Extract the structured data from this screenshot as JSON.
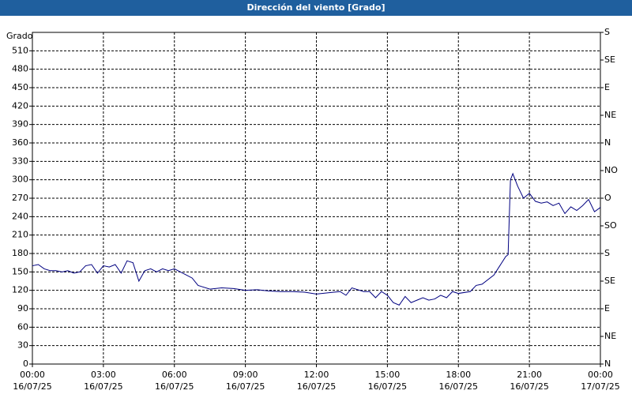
{
  "chart_data": {
    "type": "line",
    "title": "Dirección del viento [Grado]",
    "y_label": "Grado",
    "x": [
      0,
      0.25,
      0.5,
      0.75,
      1,
      1.25,
      1.5,
      1.75,
      2,
      2.25,
      2.5,
      2.75,
      3,
      3.25,
      3.5,
      3.75,
      4,
      4.25,
      4.5,
      4.75,
      5,
      5.25,
      5.5,
      5.75,
      6,
      6.25,
      6.5,
      6.75,
      7,
      7.5,
      8,
      8.5,
      9,
      9.5,
      10,
      10.5,
      11,
      11.5,
      12,
      12.5,
      13,
      13.25,
      13.5,
      14,
      14.25,
      14.5,
      14.75,
      15,
      15.25,
      15.5,
      15.75,
      16,
      16.25,
      16.5,
      16.75,
      17,
      17.25,
      17.5,
      17.75,
      18,
      18.5,
      18.75,
      19,
      19.5,
      19.75,
      20,
      20.1,
      20.2,
      20.3,
      20.5,
      20.75,
      21,
      21.25,
      21.5,
      21.75,
      22,
      22.25,
      22.5,
      22.75,
      23,
      23.25,
      23.5,
      23.75,
      24
    ],
    "series": [
      {
        "name": "Dirección del viento",
        "color": "#000080",
        "values": [
          160,
          162,
          155,
          152,
          152,
          150,
          152,
          148,
          150,
          160,
          162,
          148,
          160,
          158,
          162,
          148,
          168,
          165,
          135,
          152,
          155,
          150,
          155,
          152,
          155,
          150,
          145,
          140,
          128,
          122,
          124,
          123,
          120,
          121,
          119,
          118,
          118,
          117,
          114,
          116,
          118,
          112,
          124,
          118,
          118,
          108,
          118,
          112,
          100,
          96,
          110,
          100,
          104,
          108,
          104,
          106,
          112,
          108,
          118,
          115,
          118,
          128,
          130,
          145,
          160,
          175,
          178,
          300,
          310,
          290,
          270,
          278,
          265,
          262,
          264,
          258,
          262,
          245,
          256,
          250,
          258,
          268,
          248,
          255
        ]
      }
    ],
    "xlim": [
      0,
      24
    ],
    "xticks": [
      {
        "value": 0,
        "label": "00:00 16/07/25"
      },
      {
        "value": 3,
        "label": "03:00 16/07/25"
      },
      {
        "value": 6,
        "label": "06:00 16/07/25"
      },
      {
        "value": 9,
        "label": "09:00 16/07/25"
      },
      {
        "value": 12,
        "label": "12:00 16/07/25"
      },
      {
        "value": 15,
        "label": "15:00 16/07/25"
      },
      {
        "value": 18,
        "label": "18:00 16/07/25"
      },
      {
        "value": 21,
        "label": "21:00 16/07/25"
      },
      {
        "value": 24,
        "label": "00:00 17/07/25"
      }
    ],
    "ylim": [
      0,
      540
    ],
    "yticks": [
      0,
      30,
      60,
      90,
      120,
      150,
      180,
      210,
      240,
      270,
      300,
      330,
      360,
      390,
      420,
      450,
      480,
      510
    ],
    "y2lim": [
      0,
      540
    ],
    "y2ticks": [
      {
        "value": 0,
        "label": "N"
      },
      {
        "value": 45,
        "label": "NE"
      },
      {
        "value": 90,
        "label": "E"
      },
      {
        "value": 135,
        "label": "SE"
      },
      {
        "value": 180,
        "label": "S"
      },
      {
        "value": 225,
        "label": "SO"
      },
      {
        "value": 270,
        "label": "O"
      },
      {
        "value": 315,
        "label": "NO"
      },
      {
        "value": 360,
        "label": "N"
      },
      {
        "value": 405,
        "label": "NE"
      },
      {
        "value": 450,
        "label": "E"
      },
      {
        "value": 495,
        "label": "SE"
      },
      {
        "value": 540,
        "label": "S"
      }
    ],
    "grid": true
  }
}
